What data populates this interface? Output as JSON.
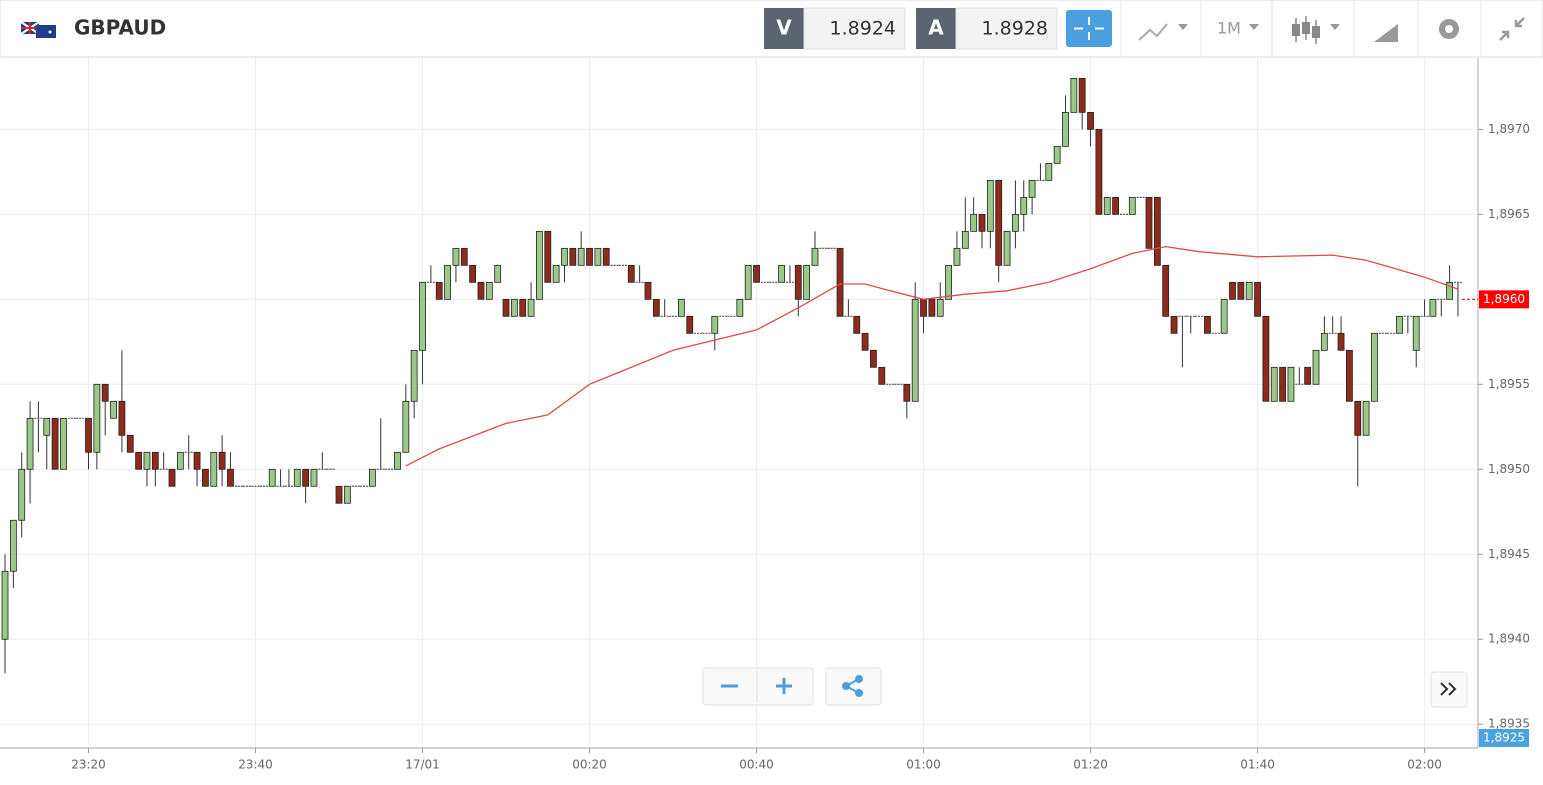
{
  "header": {
    "symbol": "GBPAUD",
    "sell_label": "V",
    "sell_price": 1.8924,
    "buy_label": "A",
    "buy_price": 1.8928,
    "timeframe": "1M"
  },
  "chart_data": {
    "type": "candlestick",
    "up_color": "#9cc98a",
    "down_color": "#8e2b1b",
    "ma_color": "#e04a4a",
    "grid": true,
    "ylim": [
      1.89336,
      1.89742
    ],
    "yticks": [
      {
        "value": 1.897,
        "label": "1,8970"
      },
      {
        "value": 1.8965,
        "label": "1,8965"
      },
      {
        "value": 1.896,
        "label": "1,8960"
      },
      {
        "value": 1.8955,
        "label": "1,8955"
      },
      {
        "value": 1.895,
        "label": "1,8950"
      },
      {
        "value": 1.8945,
        "label": "1,8945"
      },
      {
        "value": 1.894,
        "label": "1,8940"
      },
      {
        "value": 1.8935,
        "label": "1,8935"
      }
    ],
    "xlim": [
      -0.6,
      176.4
    ],
    "xticks": [
      {
        "value": 10,
        "label": "23:20"
      },
      {
        "value": 30,
        "label": "23:40"
      },
      {
        "value": 50,
        "label": "17/01"
      },
      {
        "value": 70,
        "label": "00:20"
      },
      {
        "value": 90,
        "label": "00:40"
      },
      {
        "value": 110,
        "label": "01:00"
      },
      {
        "value": 130,
        "label": "01:20"
      },
      {
        "value": 150,
        "label": "01:40"
      },
      {
        "value": 170,
        "label": "02:00"
      }
    ],
    "ohlc": [
      [
        1.894,
        1.8945,
        1.8938,
        1.8944
      ],
      [
        1.8944,
        1.8947,
        1.8943,
        1.8947
      ],
      [
        1.8947,
        1.8951,
        1.8946,
        1.895
      ],
      [
        1.895,
        1.8954,
        1.8948,
        1.8953
      ],
      [
        1.8953,
        1.8954,
        1.8951,
        1.8953
      ],
      [
        1.8952,
        1.8953,
        1.895,
        1.8953
      ],
      [
        1.8953,
        1.8953,
        1.895,
        1.895
      ],
      [
        1.895,
        1.8953,
        1.895,
        1.8953
      ],
      [
        1.8953,
        1.8953,
        1.8953,
        1.8953
      ],
      [
        1.8953,
        1.8953,
        1.8953,
        1.8953
      ],
      [
        1.8953,
        1.8953,
        1.895,
        1.8951
      ],
      [
        1.8951,
        1.8955,
        1.895,
        1.8955
      ],
      [
        1.8955,
        1.8955,
        1.8952,
        1.8954
      ],
      [
        1.8953,
        1.8954,
        1.8953,
        1.8954
      ],
      [
        1.8954,
        1.8957,
        1.8951,
        1.8952
      ],
      [
        1.8952,
        1.8952,
        1.8951,
        1.8951
      ],
      [
        1.8951,
        1.8951,
        1.895,
        1.895
      ],
      [
        1.895,
        1.8951,
        1.8949,
        1.8951
      ],
      [
        1.8951,
        1.8951,
        1.8949,
        1.895
      ],
      [
        1.895,
        1.8951,
        1.895,
        1.895
      ],
      [
        1.895,
        1.895,
        1.8949,
        1.8949
      ],
      [
        1.895,
        1.8951,
        1.895,
        1.8951
      ],
      [
        1.8951,
        1.8952,
        1.895,
        1.8951
      ],
      [
        1.8951,
        1.8951,
        1.8949,
        1.895
      ],
      [
        1.895,
        1.895,
        1.8949,
        1.8949
      ],
      [
        1.8949,
        1.8951,
        1.8949,
        1.8951
      ],
      [
        1.8951,
        1.8952,
        1.8949,
        1.895
      ],
      [
        1.895,
        1.8951,
        1.8949,
        1.8949
      ],
      [
        1.8949,
        1.8949,
        1.8949,
        1.8949
      ],
      [
        1.8949,
        1.8949,
        1.8949,
        1.8949
      ],
      [
        1.8949,
        1.8949,
        1.8949,
        1.8949
      ],
      [
        1.8949,
        1.8949,
        1.8949,
        1.8949
      ],
      [
        1.8949,
        1.895,
        1.8949,
        1.895
      ],
      [
        1.8949,
        1.895,
        1.8949,
        1.8949
      ],
      [
        1.8949,
        1.895,
        1.8949,
        1.8949
      ],
      [
        1.8949,
        1.895,
        1.8949,
        1.895
      ],
      [
        1.895,
        1.895,
        1.8948,
        1.8949
      ],
      [
        1.8949,
        1.895,
        1.8949,
        1.895
      ],
      [
        1.895,
        1.8951,
        1.895,
        1.895
      ],
      [
        1.895,
        1.895,
        1.895,
        1.895
      ],
      [
        1.8949,
        1.8949,
        1.8948,
        1.8948
      ],
      [
        1.8948,
        1.8949,
        1.8948,
        1.8949
      ],
      [
        1.8949,
        1.8949,
        1.8949,
        1.8949
      ],
      [
        1.8949,
        1.8949,
        1.8949,
        1.8949
      ],
      [
        1.8949,
        1.895,
        1.8949,
        1.895
      ],
      [
        1.895,
        1.8953,
        1.895,
        1.895
      ],
      [
        1.895,
        1.895,
        1.895,
        1.895
      ],
      [
        1.895,
        1.8951,
        1.895,
        1.8951
      ],
      [
        1.8951,
        1.8955,
        1.8951,
        1.8954
      ],
      [
        1.8954,
        1.8957,
        1.8953,
        1.8957
      ],
      [
        1.8957,
        1.8961,
        1.8955,
        1.8961
      ],
      [
        1.8961,
        1.8962,
        1.8961,
        1.8961
      ],
      [
        1.8961,
        1.8961,
        1.896,
        1.896
      ],
      [
        1.896,
        1.8962,
        1.896,
        1.8962
      ],
      [
        1.8962,
        1.8963,
        1.8961,
        1.8963
      ],
      [
        1.8963,
        1.8963,
        1.8962,
        1.8962
      ],
      [
        1.8962,
        1.8962,
        1.8961,
        1.8961
      ],
      [
        1.8961,
        1.8961,
        1.896,
        1.896
      ],
      [
        1.896,
        1.8961,
        1.896,
        1.8961
      ],
      [
        1.8961,
        1.8962,
        1.8961,
        1.8962
      ],
      [
        1.896,
        1.896,
        1.8959,
        1.8959
      ],
      [
        1.8959,
        1.896,
        1.8959,
        1.896
      ],
      [
        1.896,
        1.896,
        1.8959,
        1.8959
      ],
      [
        1.8959,
        1.8961,
        1.8959,
        1.896
      ],
      [
        1.896,
        1.8964,
        1.896,
        1.8964
      ],
      [
        1.8964,
        1.8964,
        1.8961,
        1.8961
      ],
      [
        1.8961,
        1.8962,
        1.8961,
        1.8962
      ],
      [
        1.8962,
        1.8963,
        1.8961,
        1.8963
      ],
      [
        1.8963,
        1.8963,
        1.8962,
        1.8962
      ],
      [
        1.8962,
        1.8964,
        1.8962,
        1.8963
      ],
      [
        1.8963,
        1.8963,
        1.8962,
        1.8962
      ],
      [
        1.8962,
        1.8963,
        1.8962,
        1.8963
      ],
      [
        1.8963,
        1.8963,
        1.8962,
        1.8962
      ],
      [
        1.8962,
        1.8962,
        1.8962,
        1.8962
      ],
      [
        1.8962,
        1.8962,
        1.8962,
        1.8962
      ],
      [
        1.8962,
        1.8962,
        1.8961,
        1.8961
      ],
      [
        1.8961,
        1.8962,
        1.8961,
        1.8961
      ],
      [
        1.8961,
        1.8961,
        1.896,
        1.896
      ],
      [
        1.896,
        1.896,
        1.8959,
        1.8959
      ],
      [
        1.8959,
        1.896,
        1.8959,
        1.8959
      ],
      [
        1.8959,
        1.8959,
        1.8959,
        1.8959
      ],
      [
        1.8959,
        1.896,
        1.8959,
        1.896
      ],
      [
        1.8959,
        1.8959,
        1.8958,
        1.8958
      ],
      [
        1.8958,
        1.8958,
        1.8958,
        1.8958
      ],
      [
        1.8958,
        1.8958,
        1.8958,
        1.8958
      ],
      [
        1.8958,
        1.8959,
        1.8957,
        1.8959
      ],
      [
        1.8959,
        1.8959,
        1.8959,
        1.8959
      ],
      [
        1.8959,
        1.8959,
        1.8959,
        1.8959
      ],
      [
        1.8959,
        1.896,
        1.8959,
        1.896
      ],
      [
        1.896,
        1.8962,
        1.896,
        1.8962
      ],
      [
        1.8962,
        1.8962,
        1.8961,
        1.8961
      ],
      [
        1.8961,
        1.8961,
        1.8961,
        1.8961
      ],
      [
        1.8961,
        1.8961,
        1.8961,
        1.8961
      ],
      [
        1.8961,
        1.8962,
        1.8961,
        1.8962
      ],
      [
        1.8961,
        1.8962,
        1.8961,
        1.8961
      ],
      [
        1.8962,
        1.8962,
        1.8959,
        1.896
      ],
      [
        1.896,
        1.8962,
        1.896,
        1.8962
      ],
      [
        1.8962,
        1.8964,
        1.8962,
        1.8963
      ],
      [
        1.8963,
        1.8963,
        1.8963,
        1.8963
      ],
      [
        1.8963,
        1.8963,
        1.8963,
        1.8963
      ],
      [
        1.8963,
        1.8963,
        1.8959,
        1.8959
      ],
      [
        1.8959,
        1.896,
        1.8959,
        1.8959
      ],
      [
        1.8959,
        1.8959,
        1.8958,
        1.8958
      ],
      [
        1.8958,
        1.8958,
        1.8957,
        1.8957
      ],
      [
        1.8957,
        1.8957,
        1.8956,
        1.8956
      ],
      [
        1.8956,
        1.8956,
        1.8955,
        1.8955
      ],
      [
        1.8955,
        1.8955,
        1.8955,
        1.8955
      ],
      [
        1.8955,
        1.8955,
        1.8955,
        1.8955
      ],
      [
        1.8955,
        1.8955,
        1.8953,
        1.8954
      ],
      [
        1.8954,
        1.8961,
        1.8954,
        1.896
      ],
      [
        1.896,
        1.896,
        1.8958,
        1.8959
      ],
      [
        1.896,
        1.896,
        1.8959,
        1.8959
      ],
      [
        1.8959,
        1.8961,
        1.8959,
        1.896
      ],
      [
        1.896,
        1.8962,
        1.896,
        1.8962
      ],
      [
        1.8962,
        1.8964,
        1.8962,
        1.8963
      ],
      [
        1.8963,
        1.8966,
        1.8963,
        1.8964
      ],
      [
        1.8964,
        1.8966,
        1.8964,
        1.8965
      ],
      [
        1.8965,
        1.8965,
        1.8963,
        1.8964
      ],
      [
        1.8964,
        1.8967,
        1.8963,
        1.8967
      ],
      [
        1.8967,
        1.8967,
        1.8961,
        1.8962
      ],
      [
        1.8962,
        1.8964,
        1.8962,
        1.8964
      ],
      [
        1.8964,
        1.8967,
        1.8963,
        1.8965
      ],
      [
        1.8965,
        1.8967,
        1.8964,
        1.8966
      ],
      [
        1.8966,
        1.8967,
        1.8965,
        1.8967
      ],
      [
        1.8967,
        1.8968,
        1.8967,
        1.8967
      ],
      [
        1.8967,
        1.8968,
        1.8967,
        1.8968
      ],
      [
        1.8968,
        1.8969,
        1.8968,
        1.8969
      ],
      [
        1.8969,
        1.8972,
        1.8969,
        1.8971
      ],
      [
        1.8971,
        1.8973,
        1.8971,
        1.8973
      ],
      [
        1.8973,
        1.8973,
        1.897,
        1.8971
      ],
      [
        1.8971,
        1.8971,
        1.8969,
        1.897
      ],
      [
        1.897,
        1.897,
        1.8965,
        1.8965
      ],
      [
        1.8965,
        1.8966,
        1.8965,
        1.8966
      ],
      [
        1.8966,
        1.8966,
        1.8965,
        1.8965
      ],
      [
        1.8965,
        1.8965,
        1.8965,
        1.8965
      ],
      [
        1.8965,
        1.8966,
        1.8965,
        1.8966
      ],
      [
        1.8966,
        1.8966,
        1.8966,
        1.8966
      ],
      [
        1.8966,
        1.8966,
        1.8963,
        1.8963
      ],
      [
        1.8966,
        1.8966,
        1.8962,
        1.8962
      ],
      [
        1.8962,
        1.8962,
        1.8959,
        1.8959
      ],
      [
        1.8959,
        1.8959,
        1.8958,
        1.8958
      ],
      [
        1.8959,
        1.8959,
        1.8956,
        1.8959
      ],
      [
        1.8959,
        1.8959,
        1.8958,
        1.8959
      ],
      [
        1.8959,
        1.8959,
        1.8959,
        1.8959
      ],
      [
        1.8959,
        1.8959,
        1.8958,
        1.8958
      ],
      [
        1.8958,
        1.8958,
        1.8958,
        1.8958
      ],
      [
        1.8958,
        1.896,
        1.8958,
        1.896
      ],
      [
        1.8961,
        1.8961,
        1.896,
        1.896
      ],
      [
        1.8961,
        1.8961,
        1.896,
        1.896
      ],
      [
        1.896,
        1.8961,
        1.896,
        1.8961
      ],
      [
        1.8961,
        1.8961,
        1.8959,
        1.8959
      ],
      [
        1.8959,
        1.8959,
        1.8954,
        1.8954
      ],
      [
        1.8954,
        1.8956,
        1.8954,
        1.8956
      ],
      [
        1.8956,
        1.8956,
        1.8954,
        1.8954
      ],
      [
        1.8954,
        1.8956,
        1.8954,
        1.8956
      ],
      [
        1.8955,
        1.8956,
        1.8955,
        1.8955
      ],
      [
        1.8956,
        1.8956,
        1.8955,
        1.8955
      ],
      [
        1.8955,
        1.8957,
        1.8955,
        1.8957
      ],
      [
        1.8957,
        1.8959,
        1.8957,
        1.8958
      ],
      [
        1.8958,
        1.8959,
        1.8958,
        1.8958
      ],
      [
        1.8958,
        1.8959,
        1.8957,
        1.8957
      ],
      [
        1.8957,
        1.8957,
        1.8954,
        1.8954
      ],
      [
        1.8954,
        1.8954,
        1.8949,
        1.8952
      ],
      [
        1.8952,
        1.8954,
        1.8952,
        1.8954
      ],
      [
        1.8954,
        1.8958,
        1.8954,
        1.8958
      ],
      [
        1.8958,
        1.8958,
        1.8958,
        1.8958
      ],
      [
        1.8958,
        1.8958,
        1.8958,
        1.8958
      ],
      [
        1.8958,
        1.8959,
        1.8958,
        1.8959
      ],
      [
        1.8959,
        1.8959,
        1.8958,
        1.8959
      ],
      [
        1.8957,
        1.8959,
        1.8956,
        1.8959
      ],
      [
        1.8959,
        1.896,
        1.8959,
        1.8959
      ],
      [
        1.8959,
        1.896,
        1.8959,
        1.896
      ],
      [
        1.896,
        1.896,
        1.8959,
        1.896
      ],
      [
        1.896,
        1.8962,
        1.896,
        1.8961
      ],
      [
        1.8961,
        1.8961,
        1.8959,
        1.8961
      ]
    ],
    "ma": {
      "x": [
        48,
        52,
        60,
        65,
        70,
        80,
        90,
        95,
        100,
        103,
        106,
        110,
        115,
        120,
        125,
        130,
        135,
        139,
        143,
        150,
        159,
        163,
        170,
        174
      ],
      "values": [
        1.89502,
        1.89512,
        1.89527,
        1.89532,
        1.8955,
        1.8957,
        1.89582,
        1.89595,
        1.89609,
        1.89609,
        1.89605,
        1.896,
        1.89603,
        1.89605,
        1.8961,
        1.89618,
        1.89627,
        1.89631,
        1.89628,
        1.89625,
        1.89626,
        1.89623,
        1.89613,
        1.89606
      ]
    },
    "last_price": {
      "value": 1.896,
      "label": "1,8960"
    },
    "bid_price": {
      "value": 1.8925,
      "label": "1,8925"
    }
  }
}
